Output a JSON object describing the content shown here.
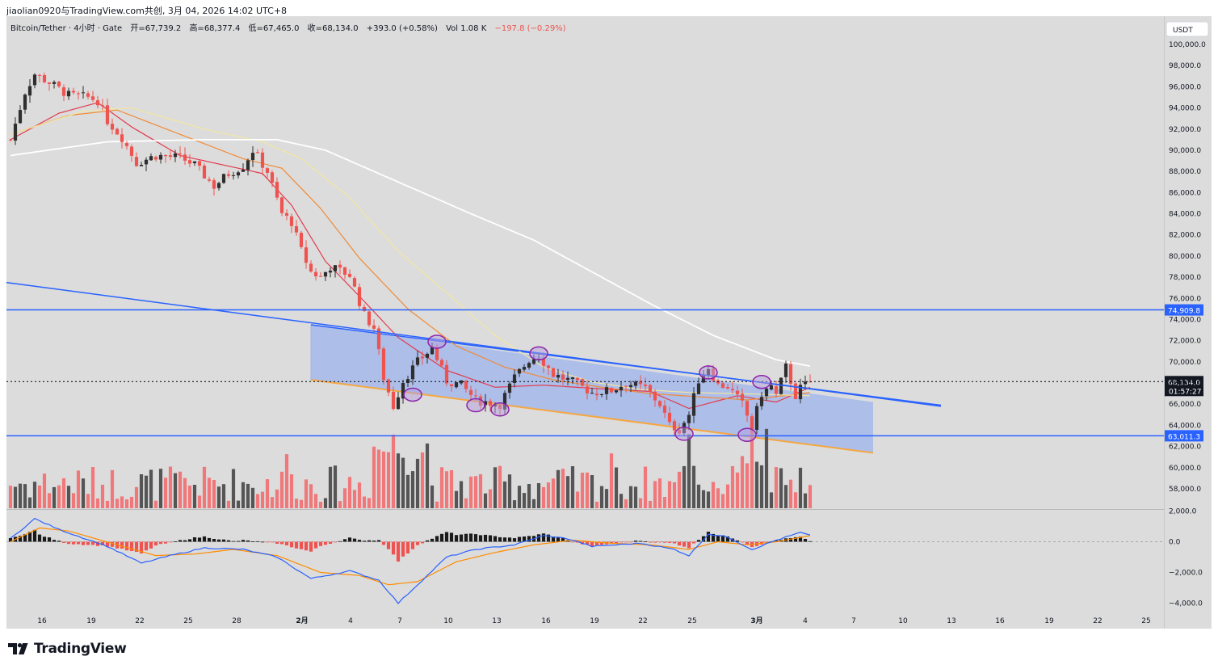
{
  "header": {
    "line": "jiaolian0920与TradingView.com共创, 3月 04, 2026 14:02 UTC+8"
  },
  "legend": {
    "symbol": "Bitcoin/Tether · 4小时 · Gate",
    "open": "开=67,739.2",
    "high": "高=68,377.4",
    "low": "低=67,465.0",
    "close": "收=68,134.0",
    "change": "+393.0 (+0.58%)",
    "volume_label": "Vol",
    "volume": "1.08 K",
    "volume_delta": "−197.8 (−0.29%)"
  },
  "currency_badge": "USDT",
  "branding": {
    "name": "TradingView"
  },
  "colors": {
    "background": "#dcdcdc",
    "bull": "#2e2e2e",
    "bear": "#ef5350",
    "bull_volume": "#555555",
    "bear_volume": "#f0787a",
    "hline": "#2962ff",
    "channel_fill": "#9db4ee",
    "channel_top": "#2962ff",
    "channel_bottom": "#f5a742",
    "ma_red": "#e23b4e",
    "ma_orange": "#f08a36",
    "ma_yellow": "#f2e6a0",
    "ma_white": "#ffffff",
    "macd_line": "#2962ff",
    "signal_line": "#ff8c00",
    "circle": "#8e24aa",
    "circle_fill": "#b39ddb"
  },
  "chart_data": {
    "type": "candlestick",
    "title": "Bitcoin/Tether · 4小时 · Gate",
    "timeframe": "4h",
    "currency": "USDT",
    "y_axis": {
      "min": 57000,
      "max": 101000,
      "ticks": [
        58000,
        60000,
        62000,
        64000,
        66000,
        68000,
        70000,
        72000,
        74000,
        76000,
        78000,
        80000,
        82000,
        84000,
        86000,
        88000,
        90000,
        92000,
        94000,
        96000,
        98000,
        100000
      ]
    },
    "x_axis": {
      "ticks": [
        "16",
        "19",
        "22",
        "25",
        "28",
        "2月",
        "4",
        "7",
        "10",
        "13",
        "16",
        "19",
        "22",
        "25",
        "3月",
        "4",
        "7",
        "10",
        "13",
        "16",
        "19",
        "22",
        "25"
      ]
    },
    "total_slots": 235,
    "last_bar_index": 165,
    "price_waypoints": [
      [
        0,
        91000
      ],
      [
        3,
        95500
      ],
      [
        5,
        97200
      ],
      [
        8,
        96400
      ],
      [
        12,
        95200
      ],
      [
        16,
        95000
      ],
      [
        18,
        94700
      ],
      [
        20,
        92800
      ],
      [
        23,
        91200
      ],
      [
        26,
        88800
      ],
      [
        30,
        89500
      ],
      [
        35,
        89300
      ],
      [
        38,
        88600
      ],
      [
        42,
        86600
      ],
      [
        45,
        87800
      ],
      [
        48,
        88500
      ],
      [
        50,
        90000
      ],
      [
        53,
        88000
      ],
      [
        56,
        84000
      ],
      [
        58,
        83200
      ],
      [
        60,
        80500
      ],
      [
        62,
        78500
      ],
      [
        64,
        78000
      ],
      [
        66,
        79000
      ],
      [
        70,
        78200
      ],
      [
        73,
        74400
      ],
      [
        75,
        73200
      ],
      [
        77,
        68500
      ],
      [
        79,
        65800
      ],
      [
        81,
        68200
      ],
      [
        84,
        70000
      ],
      [
        87,
        71300
      ],
      [
        90,
        68200
      ],
      [
        93,
        67800
      ],
      [
        96,
        66400
      ],
      [
        98,
        66200
      ],
      [
        101,
        66000
      ],
      [
        104,
        68500
      ],
      [
        107,
        70200
      ],
      [
        109,
        70600
      ],
      [
        112,
        68800
      ],
      [
        116,
        68100
      ],
      [
        120,
        67100
      ],
      [
        124,
        67300
      ],
      [
        127,
        68000
      ],
      [
        131,
        67500
      ],
      [
        134,
        66000
      ],
      [
        136,
        64000
      ],
      [
        138,
        63600
      ],
      [
        140,
        65000
      ],
      [
        142,
        68300
      ],
      [
        144,
        69500
      ],
      [
        146,
        67800
      ],
      [
        148,
        67700
      ],
      [
        151,
        66000
      ],
      [
        153,
        63800
      ],
      [
        155,
        67000
      ],
      [
        157,
        67700
      ],
      [
        158,
        66800
      ],
      [
        160,
        69500
      ],
      [
        162,
        66800
      ],
      [
        163,
        67500
      ],
      [
        165,
        68134
      ]
    ],
    "current_price": 68134.0,
    "countdown": "01:57:27",
    "horizontal_levels": [
      {
        "label": "74,909.8",
        "price": 74909.8
      },
      {
        "label": "63,011.3",
        "price": 63011.3
      }
    ],
    "current_price_label": "68,134.0",
    "moving_averages": [
      {
        "color": "#e23b4e",
        "points": [
          [
            0,
            91000
          ],
          [
            10,
            93500
          ],
          [
            18,
            94500
          ],
          [
            25,
            92200
          ],
          [
            35,
            89500
          ],
          [
            45,
            88500
          ],
          [
            52,
            87800
          ],
          [
            58,
            84800
          ],
          [
            65,
            79500
          ],
          [
            72,
            76200
          ],
          [
            80,
            72300
          ],
          [
            90,
            69200
          ],
          [
            100,
            67600
          ],
          [
            110,
            67800
          ],
          [
            120,
            67500
          ],
          [
            132,
            67200
          ],
          [
            140,
            65600
          ],
          [
            150,
            66800
          ],
          [
            158,
            66200
          ],
          [
            165,
            67600
          ]
        ]
      },
      {
        "color": "#f08a36",
        "points": [
          [
            0,
            91500
          ],
          [
            12,
            93300
          ],
          [
            22,
            93800
          ],
          [
            35,
            91500
          ],
          [
            48,
            89200
          ],
          [
            56,
            88300
          ],
          [
            64,
            84500
          ],
          [
            72,
            79800
          ],
          [
            82,
            75000
          ],
          [
            92,
            71500
          ],
          [
            102,
            69500
          ],
          [
            112,
            68300
          ],
          [
            122,
            67600
          ],
          [
            132,
            67000
          ],
          [
            142,
            66700
          ],
          [
            152,
            66400
          ],
          [
            165,
            67100
          ]
        ]
      },
      {
        "color": "#f2e6a0",
        "points": [
          [
            0,
            91500
          ],
          [
            15,
            93700
          ],
          [
            25,
            94000
          ],
          [
            40,
            92000
          ],
          [
            52,
            90800
          ],
          [
            60,
            89200
          ],
          [
            70,
            85500
          ],
          [
            80,
            80500
          ],
          [
            90,
            76500
          ],
          [
            100,
            72500
          ],
          [
            110,
            69500
          ],
          [
            120,
            68100
          ],
          [
            130,
            67400
          ],
          [
            140,
            67100
          ],
          [
            150,
            67000
          ],
          [
            165,
            66800
          ]
        ]
      },
      {
        "color": "#ffffff",
        "points": [
          [
            0,
            89500
          ],
          [
            20,
            90800
          ],
          [
            40,
            91000
          ],
          [
            55,
            91000
          ],
          [
            65,
            90000
          ],
          [
            75,
            88000
          ],
          [
            85,
            86000
          ],
          [
            95,
            84000
          ],
          [
            108,
            81500
          ],
          [
            120,
            78500
          ],
          [
            132,
            75500
          ],
          [
            145,
            72500
          ],
          [
            158,
            70200
          ],
          [
            165,
            69600
          ]
        ]
      }
    ],
    "regression_channel": {
      "top": [
        [
          62,
          73500
        ],
        [
          178,
          66200
        ]
      ],
      "bottom": [
        [
          62,
          68300
        ],
        [
          178,
          61400
        ]
      ],
      "extension_top_to": [
        192,
        65900
      ]
    },
    "trendline": [
      [
        0,
        77500
      ],
      [
        192,
        65800
      ]
    ],
    "circled_points": [
      [
        88,
        71900
      ],
      [
        83,
        66900
      ],
      [
        96,
        65900
      ],
      [
        101,
        65500
      ],
      [
        109,
        70800
      ],
      [
        139,
        63200
      ],
      [
        144,
        69000
      ],
      [
        152,
        63100
      ],
      [
        155,
        68100
      ]
    ],
    "macd": {
      "y_axis": {
        "min": -4500,
        "max": 2200,
        "ticks": [
          2000,
          0,
          -2000,
          -4000
        ],
        "tick_labels": [
          "2,000.0",
          "0.0",
          "−2,000.0",
          "−4,000.0"
        ]
      },
      "macd_waypoints": [
        [
          0,
          200
        ],
        [
          5,
          1500
        ],
        [
          10,
          800
        ],
        [
          20,
          -300
        ],
        [
          27,
          -1400
        ],
        [
          33,
          -900
        ],
        [
          40,
          -400
        ],
        [
          48,
          -500
        ],
        [
          55,
          -1000
        ],
        [
          62,
          -2400
        ],
        [
          70,
          -1900
        ],
        [
          76,
          -2500
        ],
        [
          80,
          -4000
        ],
        [
          84,
          -2800
        ],
        [
          90,
          -1000
        ],
        [
          96,
          -500
        ],
        [
          104,
          -200
        ],
        [
          110,
          400
        ],
        [
          115,
          200
        ],
        [
          120,
          -300
        ],
        [
          130,
          -100
        ],
        [
          137,
          -500
        ],
        [
          140,
          -900
        ],
        [
          144,
          500
        ],
        [
          148,
          300
        ],
        [
          153,
          -500
        ],
        [
          158,
          100
        ],
        [
          163,
          600
        ],
        [
          165,
          400
        ]
      ],
      "signal_waypoints": [
        [
          0,
          0
        ],
        [
          6,
          900
        ],
        [
          12,
          700
        ],
        [
          22,
          -200
        ],
        [
          30,
          -900
        ],
        [
          38,
          -800
        ],
        [
          46,
          -500
        ],
        [
          55,
          -900
        ],
        [
          64,
          -2000
        ],
        [
          72,
          -2200
        ],
        [
          78,
          -2800
        ],
        [
          84,
          -2600
        ],
        [
          92,
          -1300
        ],
        [
          100,
          -700
        ],
        [
          108,
          -200
        ],
        [
          116,
          100
        ],
        [
          124,
          -100
        ],
        [
          132,
          -200
        ],
        [
          140,
          -500
        ],
        [
          146,
          0
        ],
        [
          152,
          -200
        ],
        [
          158,
          0
        ],
        [
          165,
          400
        ]
      ]
    }
  }
}
